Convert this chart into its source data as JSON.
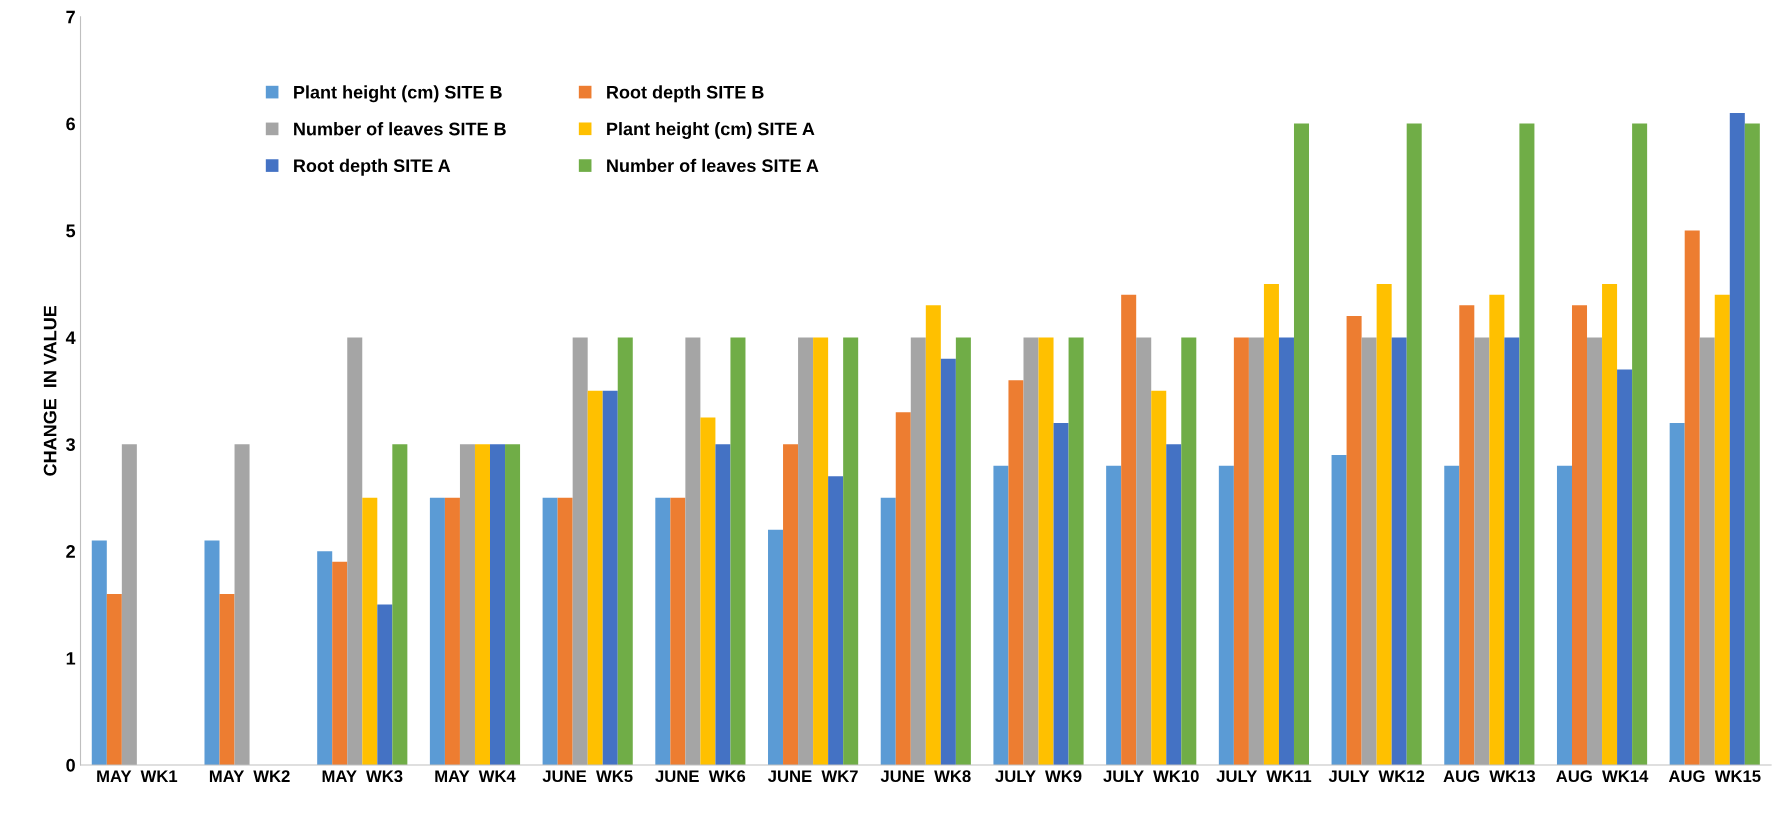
{
  "chart_data": {
    "type": "bar",
    "ylabel": "CHANGE  IN VALUE",
    "categories": [
      "MAY  WK1",
      "MAY  WK2",
      "MAY  WK3",
      "MAY  WK4",
      "JUNE  WK5",
      "JUNE  WK6",
      "JUNE  WK7",
      "JUNE  WK8",
      "JULY  WK9",
      "JULY  WK10",
      "JULY  WK11",
      "JULY  WK12",
      "AUG  WK13",
      "AUG  WK14",
      "AUG  WK15"
    ],
    "series": [
      {
        "name": "Plant height (cm) SITE B",
        "color": "#5b9bd5",
        "values": [
          2.1,
          2.1,
          2.0,
          2.5,
          2.5,
          2.5,
          2.2,
          2.5,
          2.8,
          2.8,
          2.8,
          2.9,
          2.8,
          2.8,
          3.2
        ]
      },
      {
        "name": "Root depth SITE B",
        "color": "#ed7d31",
        "values": [
          1.6,
          1.6,
          1.9,
          2.5,
          2.5,
          2.5,
          3.0,
          3.3,
          3.6,
          4.4,
          4.0,
          4.2,
          4.3,
          4.3,
          5.0
        ]
      },
      {
        "name": "Number of leaves SITE B",
        "color": "#a5a5a5",
        "values": [
          3,
          3,
          4,
          3,
          4,
          4,
          4,
          4,
          4,
          4,
          4,
          4,
          4,
          4,
          4
        ]
      },
      {
        "name": "Plant height (cm) SITE A",
        "color": "#ffc000",
        "values": [
          null,
          null,
          2.5,
          3.0,
          3.5,
          3.25,
          4.0,
          4.3,
          4.0,
          3.5,
          4.5,
          4.5,
          4.4,
          4.5,
          4.4
        ]
      },
      {
        "name": "Root depth SITE A",
        "color": "#4472c4",
        "values": [
          null,
          null,
          1.5,
          3.0,
          3.5,
          3.0,
          2.7,
          3.8,
          3.2,
          3.0,
          4.0,
          4.0,
          4.0,
          3.7,
          6.1
        ]
      },
      {
        "name": "Number of leaves SITE A",
        "color": "#70ad47",
        "values": [
          null,
          null,
          3,
          3,
          4,
          4,
          4,
          4,
          4,
          4,
          6,
          6,
          6,
          6,
          6
        ]
      }
    ],
    "ylim": [
      0,
      7
    ],
    "yticks": [
      0,
      1,
      2,
      3,
      4,
      5,
      6,
      7
    ],
    "grid": false,
    "legend": "top left"
  }
}
